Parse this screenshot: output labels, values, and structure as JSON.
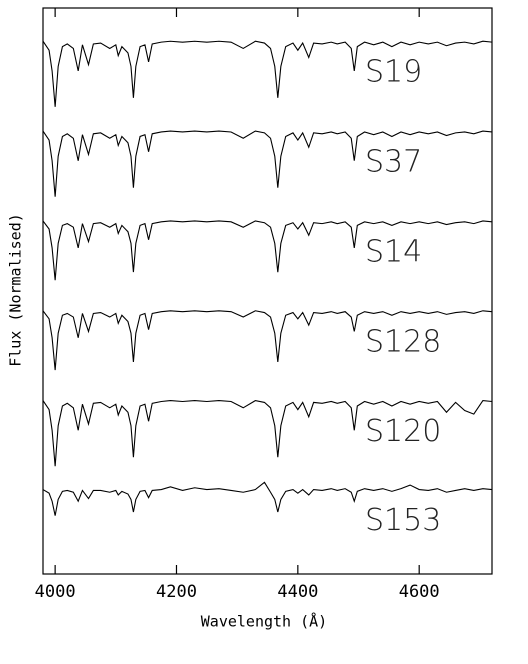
{
  "chart_data": {
    "type": "line",
    "xlabel": "Wavelength (Å)",
    "ylabel": "Flux (Normalised)",
    "xlim": [
      3980,
      4720
    ],
    "xticks": [
      4000,
      4200,
      4400,
      4600
    ],
    "ylim": [
      0,
      6.3
    ],
    "color": "#000000",
    "x": [
      3980,
      3990,
      3995,
      4000,
      4005,
      4012,
      4020,
      4030,
      4038,
      4045,
      4055,
      4063,
      4075,
      4090,
      4100,
      4104,
      4110,
      4120,
      4125,
      4129,
      4133,
      4140,
      4148,
      4154,
      4160,
      4175,
      4190,
      4210,
      4230,
      4250,
      4270,
      4290,
      4310,
      4330,
      4345,
      4355,
      4362,
      4367,
      4372,
      4380,
      4392,
      4400,
      4408,
      4418,
      4426,
      4440,
      4455,
      4465,
      4478,
      4488,
      4493,
      4498,
      4510,
      4525,
      4540,
      4555,
      4570,
      4585,
      4600,
      4615,
      4630,
      4645,
      4660,
      4675,
      4690,
      4705,
      4720
    ],
    "series": [
      {
        "name": "S19",
        "values": [
          5.93,
          5.83,
          5.6,
          5.2,
          5.65,
          5.87,
          5.9,
          5.85,
          5.6,
          5.89,
          5.67,
          5.9,
          5.91,
          5.85,
          5.89,
          5.77,
          5.87,
          5.8,
          5.65,
          5.3,
          5.65,
          5.87,
          5.89,
          5.7,
          5.9,
          5.92,
          5.93,
          5.92,
          5.93,
          5.92,
          5.93,
          5.92,
          5.85,
          5.93,
          5.91,
          5.85,
          5.65,
          5.3,
          5.65,
          5.87,
          5.91,
          5.83,
          5.91,
          5.75,
          5.91,
          5.9,
          5.92,
          5.9,
          5.92,
          5.85,
          5.6,
          5.87,
          5.92,
          5.89,
          5.92,
          5.87,
          5.92,
          5.89,
          5.92,
          5.9,
          5.92,
          5.88,
          5.91,
          5.92,
          5.9,
          5.93,
          5.92
        ]
      },
      {
        "name": "S37",
        "values": [
          4.93,
          4.83,
          4.6,
          4.2,
          4.65,
          4.87,
          4.9,
          4.85,
          4.6,
          4.89,
          4.67,
          4.9,
          4.91,
          4.85,
          4.89,
          4.77,
          4.87,
          4.8,
          4.65,
          4.3,
          4.65,
          4.87,
          4.89,
          4.7,
          4.9,
          4.92,
          4.93,
          4.92,
          4.93,
          4.92,
          4.93,
          4.92,
          4.85,
          4.93,
          4.91,
          4.85,
          4.65,
          4.3,
          4.65,
          4.87,
          4.91,
          4.83,
          4.91,
          4.75,
          4.91,
          4.9,
          4.92,
          4.9,
          4.92,
          4.85,
          4.6,
          4.87,
          4.92,
          4.89,
          4.92,
          4.87,
          4.92,
          4.89,
          4.92,
          4.9,
          4.92,
          4.88,
          4.91,
          4.92,
          4.9,
          4.93,
          4.92
        ]
      },
      {
        "name": "S14",
        "values": [
          3.93,
          3.84,
          3.63,
          3.27,
          3.68,
          3.88,
          3.9,
          3.86,
          3.63,
          3.9,
          3.7,
          3.9,
          3.91,
          3.86,
          3.9,
          3.79,
          3.88,
          3.81,
          3.68,
          3.36,
          3.68,
          3.88,
          3.9,
          3.72,
          3.9,
          3.92,
          3.93,
          3.92,
          3.93,
          3.92,
          3.93,
          3.92,
          3.86,
          3.93,
          3.91,
          3.86,
          3.68,
          3.36,
          3.68,
          3.88,
          3.91,
          3.84,
          3.91,
          3.77,
          3.91,
          3.9,
          3.92,
          3.9,
          3.92,
          3.86,
          3.63,
          3.88,
          3.92,
          3.9,
          3.92,
          3.88,
          3.92,
          3.9,
          3.92,
          3.9,
          3.92,
          3.89,
          3.91,
          3.92,
          3.9,
          3.93,
          3.92
        ]
      },
      {
        "name": "S128",
        "values": [
          2.93,
          2.84,
          2.63,
          2.27,
          2.68,
          2.88,
          2.9,
          2.86,
          2.63,
          2.9,
          2.7,
          2.9,
          2.91,
          2.86,
          2.9,
          2.79,
          2.88,
          2.81,
          2.68,
          2.36,
          2.68,
          2.88,
          2.9,
          2.72,
          2.9,
          2.92,
          2.93,
          2.92,
          2.93,
          2.92,
          2.93,
          2.92,
          2.86,
          2.93,
          2.91,
          2.86,
          2.68,
          2.36,
          2.68,
          2.88,
          2.91,
          2.84,
          2.91,
          2.77,
          2.91,
          2.9,
          2.92,
          2.9,
          2.92,
          2.86,
          2.7,
          2.88,
          2.92,
          2.9,
          2.92,
          2.88,
          2.92,
          2.9,
          2.92,
          2.9,
          2.92,
          2.89,
          2.91,
          2.92,
          2.9,
          2.93,
          2.92
        ]
      },
      {
        "name": "S120",
        "values": [
          1.93,
          1.83,
          1.6,
          1.2,
          1.65,
          1.87,
          1.9,
          1.85,
          1.6,
          1.89,
          1.67,
          1.9,
          1.91,
          1.85,
          1.89,
          1.77,
          1.87,
          1.8,
          1.65,
          1.3,
          1.65,
          1.87,
          1.89,
          1.7,
          1.9,
          1.92,
          1.93,
          1.92,
          1.93,
          1.92,
          1.93,
          1.92,
          1.85,
          1.93,
          1.91,
          1.85,
          1.65,
          1.3,
          1.65,
          1.87,
          1.91,
          1.83,
          1.91,
          1.75,
          1.91,
          1.9,
          1.92,
          1.9,
          1.92,
          1.85,
          1.6,
          1.87,
          1.92,
          1.89,
          1.92,
          1.87,
          1.92,
          1.89,
          1.92,
          1.9,
          1.92,
          1.8,
          1.91,
          1.82,
          1.78,
          1.93,
          1.92
        ]
      },
      {
        "name": "S153",
        "values": [
          0.94,
          0.9,
          0.81,
          0.65,
          0.83,
          0.92,
          0.93,
          0.91,
          0.81,
          0.93,
          0.84,
          0.93,
          0.93,
          0.91,
          0.93,
          0.88,
          0.92,
          0.89,
          0.83,
          0.69,
          0.83,
          0.92,
          0.93,
          0.85,
          0.93,
          0.94,
          0.97,
          0.93,
          0.96,
          0.94,
          0.95,
          0.93,
          0.91,
          0.94,
          1.02,
          0.91,
          0.83,
          0.69,
          0.83,
          0.92,
          0.94,
          0.9,
          0.94,
          0.88,
          0.94,
          0.93,
          0.95,
          0.93,
          0.95,
          0.91,
          0.81,
          0.92,
          0.95,
          0.93,
          0.95,
          0.92,
          0.95,
          0.99,
          0.94,
          0.93,
          0.95,
          0.91,
          0.93,
          0.95,
          0.93,
          0.95,
          0.94
        ]
      }
    ]
  }
}
